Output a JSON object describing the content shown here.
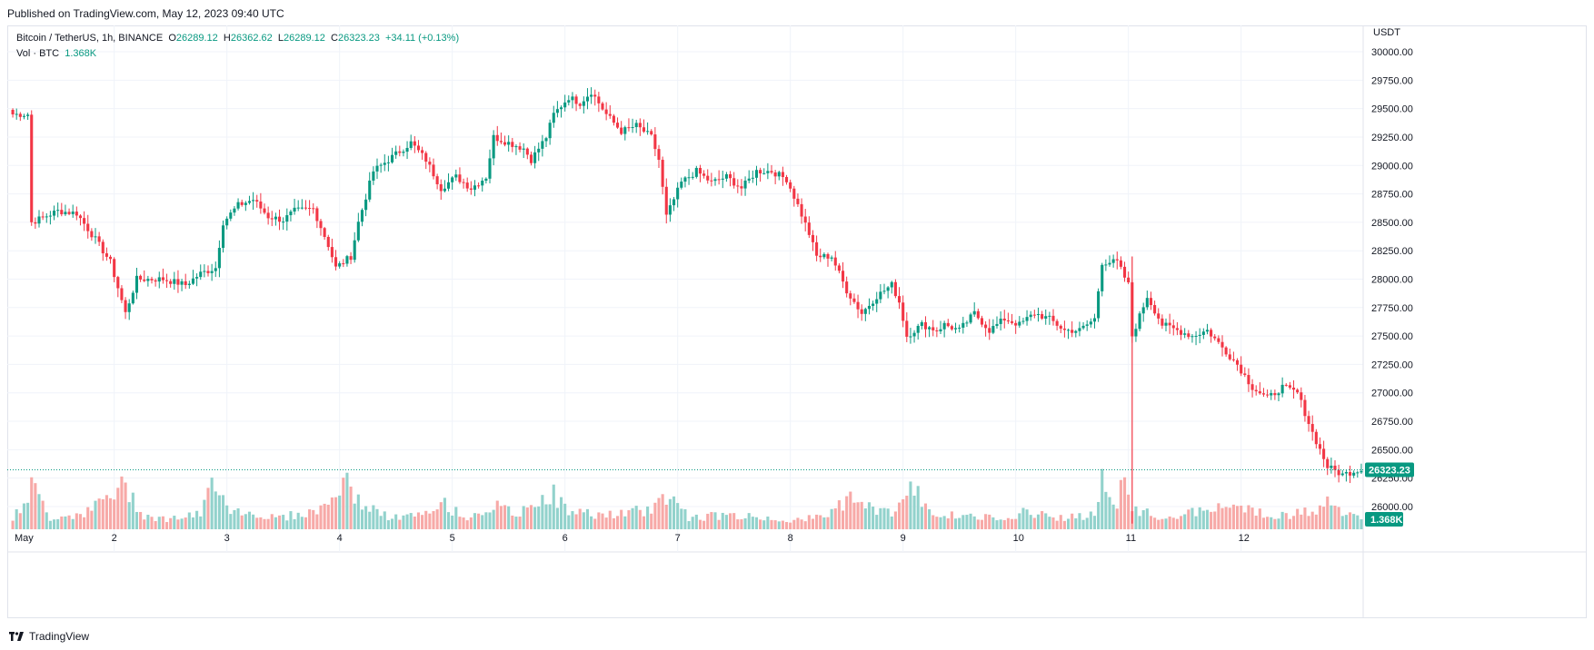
{
  "header": {
    "published": "Published on TradingView.com, May 12, 2023 09:40 UTC"
  },
  "legend": {
    "symbol": "Bitcoin / TetherUS, 1h, BINANCE",
    "open_label": "O",
    "open": "26289.12",
    "high_label": "H",
    "high": "26362.62",
    "low_label": "L",
    "low": "26289.12",
    "close_label": "C",
    "close": "26323.23",
    "change": "+34.11 (+0.13%)",
    "volume_label": "Vol · BTC",
    "volume": "1.368K"
  },
  "footer": {
    "brand": "TradingView",
    "logo_icon": "tradingview-logo-icon"
  },
  "colors": {
    "up": "#089981",
    "down": "#f23645",
    "up_vol": "#92d2cc",
    "down_vol": "#f7a9a7",
    "grid": "#f0f3fa",
    "text": "#131722"
  },
  "chart_data": {
    "type": "candlestick",
    "title": "Bitcoin / TetherUS, 1h, BINANCE",
    "currency": "USDT",
    "y_ticks": [
      "30000.00",
      "29750.00",
      "29500.00",
      "29250.00",
      "29000.00",
      "28750.00",
      "28500.00",
      "28250.00",
      "28000.00",
      "27750.00",
      "27500.00",
      "27250.00",
      "27000.00",
      "26750.00",
      "26500.00",
      "26250.00",
      "26000.00"
    ],
    "ylim": [
      25800,
      30200
    ],
    "x_ticks": [
      "May",
      "2",
      "3",
      "4",
      "5",
      "6",
      "7",
      "8",
      "9",
      "10",
      "11",
      "12"
    ],
    "last_price": "26323.23",
    "last_volume": "1.368K",
    "path_points": [
      [
        0,
        29450
      ],
      [
        4,
        29450
      ],
      [
        5,
        28500
      ],
      [
        12,
        28600
      ],
      [
        17,
        28580
      ],
      [
        22,
        28350
      ],
      [
        26,
        28150
      ],
      [
        30,
        27700
      ],
      [
        33,
        28000
      ],
      [
        40,
        28000
      ],
      [
        46,
        27950
      ],
      [
        50,
        28050
      ],
      [
        54,
        28100
      ],
      [
        56,
        28500
      ],
      [
        60,
        28650
      ],
      [
        64,
        28700
      ],
      [
        68,
        28550
      ],
      [
        72,
        28520
      ],
      [
        75,
        28600
      ],
      [
        80,
        28620
      ],
      [
        84,
        28300
      ],
      [
        86,
        28100
      ],
      [
        90,
        28200
      ],
      [
        92,
        28500
      ],
      [
        96,
        28950
      ],
      [
        100,
        29050
      ],
      [
        104,
        29150
      ],
      [
        106,
        29200
      ],
      [
        110,
        29050
      ],
      [
        114,
        28800
      ],
      [
        118,
        28900
      ],
      [
        122,
        28800
      ],
      [
        126,
        28900
      ],
      [
        128,
        29250
      ],
      [
        132,
        29200
      ],
      [
        136,
        29150
      ],
      [
        138,
        29050
      ],
      [
        142,
        29250
      ],
      [
        144,
        29450
      ],
      [
        148,
        29600
      ],
      [
        151,
        29550
      ],
      [
        154,
        29650
      ],
      [
        158,
        29450
      ],
      [
        162,
        29300
      ],
      [
        166,
        29350
      ],
      [
        170,
        29250
      ],
      [
        172,
        29050
      ],
      [
        174,
        28550
      ],
      [
        178,
        28850
      ],
      [
        182,
        28950
      ],
      [
        186,
        28850
      ],
      [
        190,
        28900
      ],
      [
        194,
        28800
      ],
      [
        198,
        28950
      ],
      [
        202,
        28950
      ],
      [
        206,
        28880
      ],
      [
        209,
        28650
      ],
      [
        212,
        28400
      ],
      [
        214,
        28200
      ],
      [
        218,
        28200
      ],
      [
        222,
        27900
      ],
      [
        226,
        27700
      ],
      [
        230,
        27850
      ],
      [
        234,
        27950
      ],
      [
        236,
        27800
      ],
      [
        238,
        27500
      ],
      [
        242,
        27600
      ],
      [
        246,
        27550
      ],
      [
        248,
        27600
      ],
      [
        252,
        27550
      ],
      [
        256,
        27700
      ],
      [
        260,
        27550
      ],
      [
        264,
        27650
      ],
      [
        268,
        27600
      ],
      [
        272,
        27700
      ],
      [
        276,
        27650
      ],
      [
        280,
        27550
      ],
      [
        284,
        27550
      ],
      [
        288,
        27650
      ],
      [
        290,
        28150
      ],
      [
        294,
        28150
      ],
      [
        297,
        27950
      ],
      [
        298,
        27500
      ],
      [
        302,
        27850
      ],
      [
        306,
        27600
      ],
      [
        310,
        27550
      ],
      [
        314,
        27500
      ],
      [
        318,
        27550
      ],
      [
        322,
        27400
      ],
      [
        326,
        27250
      ],
      [
        330,
        27050
      ],
      [
        334,
        26950
      ],
      [
        338,
        27050
      ],
      [
        342,
        27000
      ],
      [
        346,
        26650
      ],
      [
        350,
        26350
      ],
      [
        354,
        26280
      ],
      [
        358,
        26323
      ]
    ],
    "volume_profile": "relative volume per hourly candle (0–1)",
    "volume_points": [
      [
        0,
        0.15
      ],
      [
        5,
        0.75
      ],
      [
        10,
        0.2
      ],
      [
        20,
        0.3
      ],
      [
        25,
        0.55
      ],
      [
        30,
        0.75
      ],
      [
        35,
        0.25
      ],
      [
        40,
        0.18
      ],
      [
        50,
        0.25
      ],
      [
        54,
        0.95
      ],
      [
        58,
        0.35
      ],
      [
        70,
        0.2
      ],
      [
        80,
        0.3
      ],
      [
        84,
        0.45
      ],
      [
        88,
        0.85
      ],
      [
        92,
        0.5
      ],
      [
        100,
        0.2
      ],
      [
        110,
        0.25
      ],
      [
        115,
        0.45
      ],
      [
        120,
        0.2
      ],
      [
        128,
        0.4
      ],
      [
        135,
        0.25
      ],
      [
        140,
        0.55
      ],
      [
        144,
        0.6
      ],
      [
        148,
        0.3
      ],
      [
        160,
        0.25
      ],
      [
        170,
        0.35
      ],
      [
        175,
        0.65
      ],
      [
        180,
        0.2
      ],
      [
        190,
        0.25
      ],
      [
        200,
        0.2
      ],
      [
        210,
        0.15
      ],
      [
        218,
        0.3
      ],
      [
        222,
        0.55
      ],
      [
        226,
        0.4
      ],
      [
        234,
        0.3
      ],
      [
        240,
        0.7
      ],
      [
        246,
        0.25
      ],
      [
        260,
        0.2
      ],
      [
        270,
        0.3
      ],
      [
        280,
        0.2
      ],
      [
        288,
        0.25
      ],
      [
        290,
        0.95
      ],
      [
        294,
        0.3
      ],
      [
        296,
        1.0
      ],
      [
        298,
        0.35
      ],
      [
        306,
        0.2
      ],
      [
        320,
        0.35
      ],
      [
        330,
        0.4
      ],
      [
        334,
        0.2
      ],
      [
        345,
        0.3
      ],
      [
        350,
        0.45
      ],
      [
        354,
        0.3
      ],
      [
        358,
        0.2
      ]
    ]
  }
}
